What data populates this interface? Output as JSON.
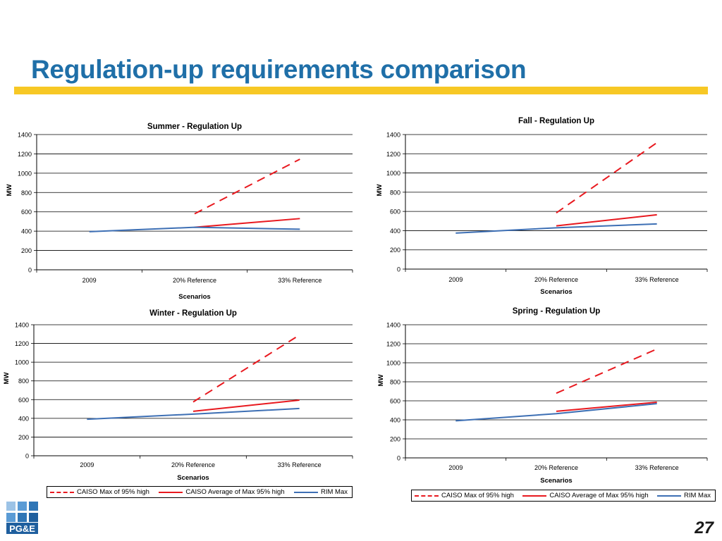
{
  "slide": {
    "title": "Regulation-up requirements comparison",
    "page_number": "27",
    "logo_text": "PG&E",
    "accent_color": "#f7c825",
    "title_color": "#1f6fa8"
  },
  "legend": {
    "items": [
      {
        "label": "CAISO Max of 95% high",
        "style": "dashed",
        "color": "#e8191f"
      },
      {
        "label": "CAISO Average of Max 95% high",
        "style": "solid",
        "color": "#e8191f"
      },
      {
        "label": "RIM Max",
        "style": "solid",
        "color": "#3d6fb4"
      }
    ]
  },
  "chart_data": [
    {
      "type": "line",
      "title": "Summer - Regulation Up",
      "xlabel": "Scenarios",
      "ylabel": "MW",
      "categories": [
        "2009",
        "20% Reference",
        "33% Reference"
      ],
      "ylim": [
        0,
        1400
      ],
      "yticks": [
        "0",
        "200",
        "400",
        "600",
        "800",
        "1000",
        "1200",
        "1400"
      ],
      "grid": true,
      "series": [
        {
          "name": "CAISO Max of 95% high",
          "values": [
            null,
            580,
            1145
          ],
          "color": "#e8191f",
          "dashed": true
        },
        {
          "name": "CAISO Average of Max 95% high",
          "values": [
            null,
            440,
            530
          ],
          "color": "#e8191f",
          "dashed": false
        },
        {
          "name": "RIM Max",
          "values": [
            395,
            440,
            420
          ],
          "color": "#3d6fb4",
          "dashed": false
        }
      ]
    },
    {
      "type": "line",
      "title": "Fall - Regulation Up",
      "xlabel": "Scenarios",
      "ylabel": "MW",
      "categories": [
        "2009",
        "20% Reference",
        "33% Reference"
      ],
      "ylim": [
        0,
        1400
      ],
      "yticks": [
        "0",
        "200",
        "400",
        "600",
        "800",
        "1000",
        "1200",
        "1400"
      ],
      "grid": true,
      "series": [
        {
          "name": "CAISO Max of 95% high",
          "values": [
            null,
            585,
            1315
          ],
          "color": "#e8191f",
          "dashed": true
        },
        {
          "name": "CAISO Average of Max 95% high",
          "values": [
            null,
            450,
            565
          ],
          "color": "#e8191f",
          "dashed": false
        },
        {
          "name": "RIM Max",
          "values": [
            375,
            430,
            470
          ],
          "color": "#3d6fb4",
          "dashed": false
        }
      ]
    },
    {
      "type": "line",
      "title": "Winter - Regulation Up",
      "xlabel": "Scenarios",
      "ylabel": "MW",
      "categories": [
        "2009",
        "20% Reference",
        "33% Reference"
      ],
      "ylim": [
        0,
        1400
      ],
      "yticks": [
        "0",
        "200",
        "400",
        "600",
        "800",
        "1000",
        "1200",
        "1400"
      ],
      "grid": true,
      "series": [
        {
          "name": "CAISO Max of 95% high",
          "values": [
            null,
            575,
            1290
          ],
          "color": "#e8191f",
          "dashed": true
        },
        {
          "name": "CAISO Average of Max 95% high",
          "values": [
            null,
            475,
            595
          ],
          "color": "#e8191f",
          "dashed": false
        },
        {
          "name": "RIM Max",
          "values": [
            390,
            445,
            505
          ],
          "color": "#3d6fb4",
          "dashed": false
        }
      ]
    },
    {
      "type": "line",
      "title": "Spring - Regulation Up",
      "xlabel": "Scenarios",
      "ylabel": "MW",
      "categories": [
        "2009",
        "20% Reference",
        "33% Reference"
      ],
      "ylim": [
        0,
        1400
      ],
      "yticks": [
        "0",
        "200",
        "400",
        "600",
        "800",
        "1000",
        "1200",
        "1400"
      ],
      "grid": true,
      "series": [
        {
          "name": "CAISO Max of 95% high",
          "values": [
            null,
            680,
            1145
          ],
          "color": "#e8191f",
          "dashed": true
        },
        {
          "name": "CAISO Average of Max 95% high",
          "values": [
            null,
            490,
            585
          ],
          "color": "#e8191f",
          "dashed": false
        },
        {
          "name": "RIM Max",
          "values": [
            390,
            465,
            570
          ],
          "color": "#3d6fb4",
          "dashed": false
        }
      ]
    }
  ]
}
